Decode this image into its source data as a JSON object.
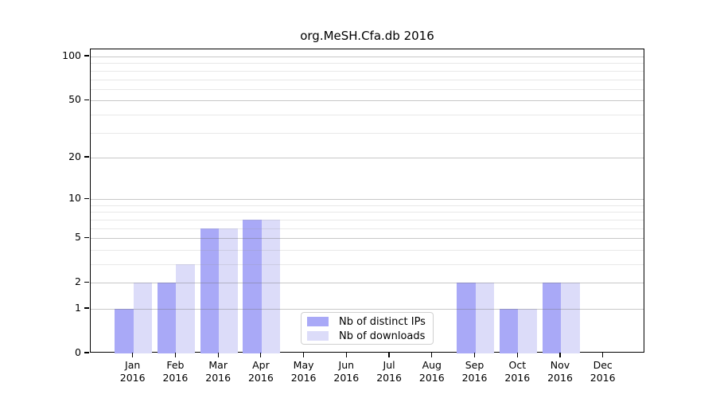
{
  "title": "org.MeSH.Cfa.db 2016",
  "legend": {
    "items": [
      {
        "label": "Nb of distinct IPs",
        "color": "#a9a9f7"
      },
      {
        "label": "Nb of downloads",
        "color": "#dcdcf9"
      }
    ]
  },
  "y_axis": {
    "tick_labels": [
      "100",
      "50",
      "20",
      "10",
      "5",
      "2",
      "1",
      "0"
    ],
    "tick_values": [
      100,
      50,
      20,
      10,
      5,
      2,
      1,
      0
    ],
    "major_grid_values": [
      1,
      2,
      5,
      10,
      20,
      50,
      100
    ],
    "minor_grid_values": [
      3,
      4,
      6,
      7,
      8,
      9,
      30,
      40,
      60,
      70,
      80,
      90
    ]
  },
  "x_axis": {
    "months": [
      "Jan",
      "Feb",
      "Mar",
      "Apr",
      "May",
      "Jun",
      "Jul",
      "Aug",
      "Sep",
      "Oct",
      "Nov",
      "Dec"
    ],
    "year": "2016"
  },
  "chart_data": {
    "type": "bar",
    "title": "org.MeSH.Cfa.db 2016",
    "categories": [
      "Jan 2016",
      "Feb 2016",
      "Mar 2016",
      "Apr 2016",
      "May 2016",
      "Jun 2016",
      "Jul 2016",
      "Aug 2016",
      "Sep 2016",
      "Oct 2016",
      "Nov 2016",
      "Dec 2016"
    ],
    "series": [
      {
        "name": "Nb of distinct IPs",
        "color": "#a9a9f7",
        "values": [
          1,
          2,
          6,
          7,
          0,
          0,
          0,
          0,
          2,
          1,
          2,
          0
        ]
      },
      {
        "name": "Nb of downloads",
        "color": "#dcdcf9",
        "values": [
          2,
          3,
          6,
          7,
          0,
          0,
          0,
          0,
          2,
          1,
          2,
          0
        ]
      }
    ],
    "xlabel": "",
    "ylabel": "",
    "yscale": "log1p",
    "ylim": [
      0,
      100
    ],
    "yticks": [
      0,
      1,
      2,
      5,
      10,
      20,
      50,
      100
    ],
    "grid": true,
    "legend_position": "lower center"
  }
}
